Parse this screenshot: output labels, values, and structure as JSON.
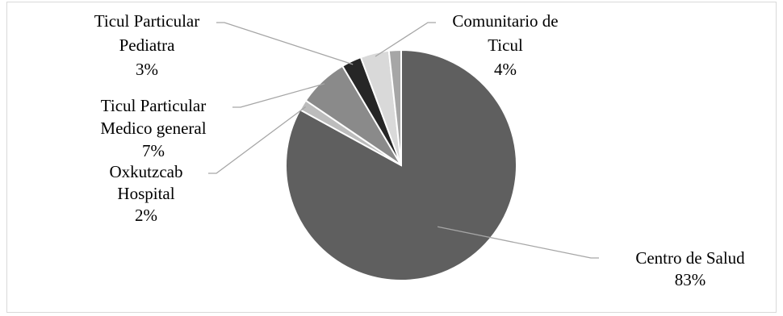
{
  "chart_data": {
    "type": "pie",
    "title": "",
    "start_angle_deg": 90,
    "direction": "clockwise",
    "slices": [
      {
        "name": "Centro de Salud",
        "label_lines": [
          "Centro de Salud",
          "83%"
        ],
        "value": 83,
        "color": "#5f5f5f"
      },
      {
        "name": "Oxkutzcab Hospital",
        "label_lines": [
          "Oxkutzcab",
          "Hospital",
          "2%"
        ],
        "value": 1.5,
        "color": "#bcbcbc"
      },
      {
        "name": "Ticul Particular Medico general",
        "label_lines": [
          "Ticul Particular",
          "Medico general",
          "7%"
        ],
        "value": 7,
        "color": "#8a8a8a"
      },
      {
        "name": "Ticul Particular Pediatra",
        "label_lines": [
          "Ticul Particular",
          "Pediatra",
          "3%"
        ],
        "value": 2.8,
        "color": "#262626"
      },
      {
        "name": "Comunitario de Ticul",
        "label_lines": [
          "Comunitario de",
          "Ticul",
          "4%"
        ],
        "value": 4,
        "color": "#d9d9d9"
      },
      {
        "name": "",
        "label_lines": [],
        "value": 1.7,
        "color": "#a6a6a6"
      }
    ],
    "legend": "none",
    "data_labels": "outside with leader lines"
  }
}
